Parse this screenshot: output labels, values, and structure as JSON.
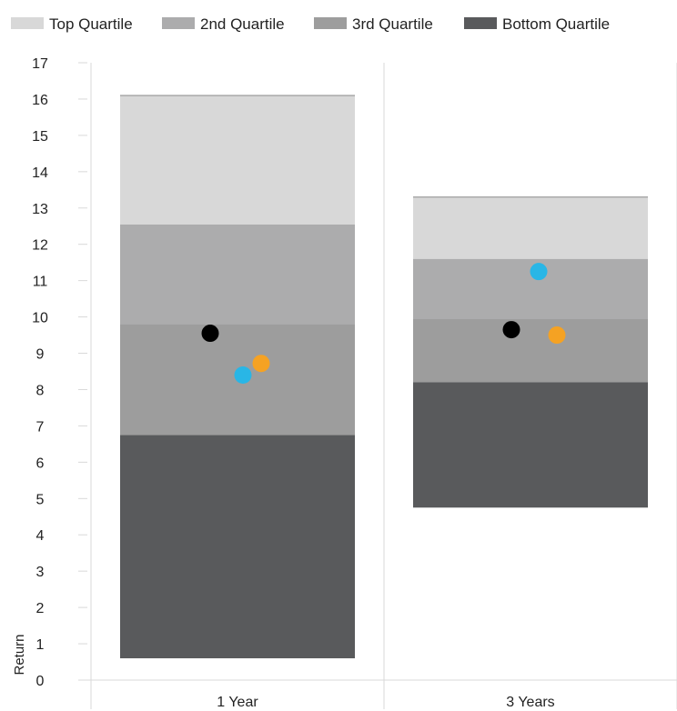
{
  "chart_data": {
    "type": "bar",
    "stacking": "floating-stacked",
    "categories": [
      "1 Year",
      "3 Years"
    ],
    "ylabel": "Return",
    "xlabel": "",
    "ylim": [
      0,
      17
    ],
    "yticks": [
      0,
      1,
      2,
      3,
      4,
      5,
      6,
      7,
      8,
      9,
      10,
      11,
      12,
      13,
      14,
      15,
      16,
      17
    ],
    "grid": "vertical category separators",
    "legend_position": "top",
    "series": [
      {
        "name": "Bottom Quartile",
        "color": "#595a5c",
        "ranges": [
          [
            0.6,
            6.75
          ],
          [
            4.75,
            8.2
          ]
        ]
      },
      {
        "name": "3rd Quartile",
        "color": "#9d9d9d",
        "ranges": [
          [
            6.75,
            9.8
          ],
          [
            8.2,
            9.95
          ]
        ]
      },
      {
        "name": "2nd Quartile",
        "color": "#acacad",
        "ranges": [
          [
            9.8,
            12.55
          ],
          [
            9.95,
            11.6
          ]
        ]
      },
      {
        "name": "Top Quartile",
        "color": "#d8d8d8",
        "ranges": [
          [
            12.55,
            16.1
          ],
          [
            11.6,
            13.3
          ]
        ]
      }
    ],
    "legend_order": [
      "Top Quartile",
      "2nd Quartile",
      "3rd Quartile",
      "Bottom Quartile"
    ],
    "points": [
      {
        "category": "1 Year",
        "color": "#000000",
        "value": 9.55
      },
      {
        "category": "1 Year",
        "color": "#29b6e6",
        "value": 8.4
      },
      {
        "category": "1 Year",
        "color": "#f5a223",
        "value": 8.72
      },
      {
        "category": "3 Years",
        "color": "#000000",
        "value": 9.65
      },
      {
        "category": "3 Years",
        "color": "#29b6e6",
        "value": 11.25
      },
      {
        "category": "3 Years",
        "color": "#f5a223",
        "value": 9.5
      }
    ]
  }
}
